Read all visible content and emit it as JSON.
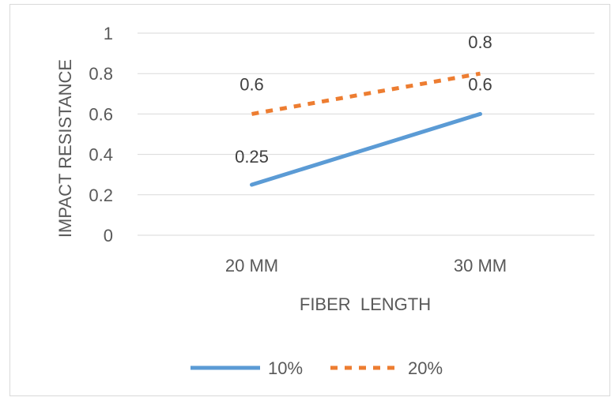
{
  "chart_data": {
    "type": "line",
    "categories": [
      "20 MM",
      "30 MM"
    ],
    "series": [
      {
        "name": "10%",
        "values": [
          0.25,
          0.6
        ],
        "color": "#5b9bd5",
        "line_style": "solid"
      },
      {
        "name": "20%",
        "values": [
          0.6,
          0.8
        ],
        "color": "#ed7d31",
        "line_style": "dashed"
      }
    ],
    "data_labels": {
      "10%": [
        "0.25",
        "0.6"
      ],
      "20%": [
        "0.6",
        "0.8"
      ]
    },
    "xlabel": "FIBER  LENGTH",
    "ylabel": "IMPACT RESISTANCE",
    "ylim": [
      0,
      1
    ],
    "yticks": [
      "0",
      "0.2",
      "0.4",
      "0.6",
      "0.8",
      "1"
    ],
    "grid": true,
    "legend_position": "bottom"
  }
}
